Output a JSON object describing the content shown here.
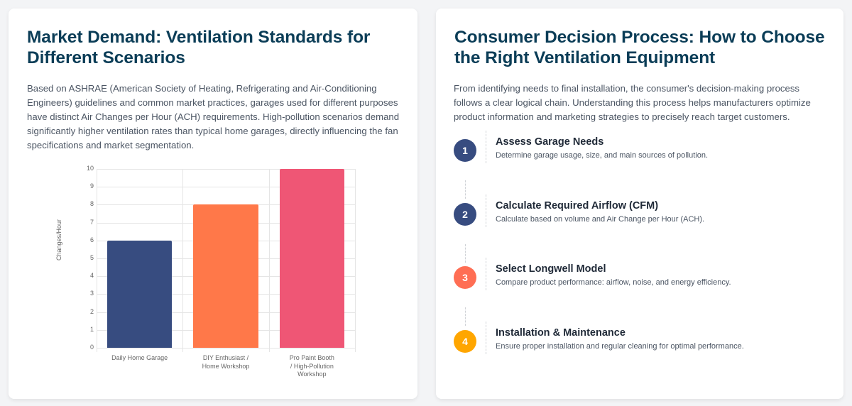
{
  "left_card": {
    "title": "Market Demand: Ventilation Standards for Different Scenarios",
    "description": "Based on ASHRAE (American Society of Heating, Refrigerating and Air-Conditioning Engineers) guidelines and common market practices, garages used for different purposes have distinct Air Changes per Hour (ACH) requirements. High-pollution scenarios demand significantly higher ventilation rates than typical home garages, directly influencing the fan specifications and market segmentation."
  },
  "chart_data": {
    "type": "bar",
    "title": "",
    "xlabel": "",
    "ylabel": "Changes/Hour",
    "ylim": [
      0,
      10
    ],
    "yticks": [
      "0",
      "1",
      "2",
      "3",
      "4",
      "5",
      "6",
      "7",
      "8",
      "9",
      "10"
    ],
    "categories": [
      "Daily Home Garage",
      "DIY Enthusiast / Home Workshop",
      "Pro Paint Booth / High-Pollution Workshop"
    ],
    "category_lines": [
      [
        "Daily Home Garage"
      ],
      [
        "DIY Enthusiast /",
        "Home Workshop"
      ],
      [
        "Pro Paint Booth",
        "/ High-Pollution",
        "Workshop"
      ]
    ],
    "values": [
      6,
      8,
      10
    ],
    "colors": [
      "#374c80",
      "#ff7849",
      "#ef5675"
    ],
    "grid": true,
    "legend": false
  },
  "right_card": {
    "title": "Consumer Decision Process: How to Choose the Right Ventilation Equipment",
    "description": "From identifying needs to final installation, the consumer's decision-making process follows a clear logical chain. Understanding this process helps manufacturers optimize product information and marketing strategies to precisely reach target customers.",
    "steps": [
      {
        "number": "1",
        "title": "Assess Garage Needs",
        "subtitle": "Determine garage usage, size, and main sources of pollution.",
        "color": "#374c80"
      },
      {
        "number": "2",
        "title": "Calculate Required Airflow (CFM)",
        "subtitle": "Calculate based on volume and Air Change per Hour (ACH).",
        "color": "#374c80"
      },
      {
        "number": "3",
        "title": "Select Longwell Model",
        "subtitle": "Compare product performance: airflow, noise, and energy efficiency.",
        "color": "#ff6e54"
      },
      {
        "number": "4",
        "title": "Installation & Maintenance",
        "subtitle": "Ensure proper installation and regular cleaning for optimal performance.",
        "color": "#ffa600"
      }
    ]
  }
}
